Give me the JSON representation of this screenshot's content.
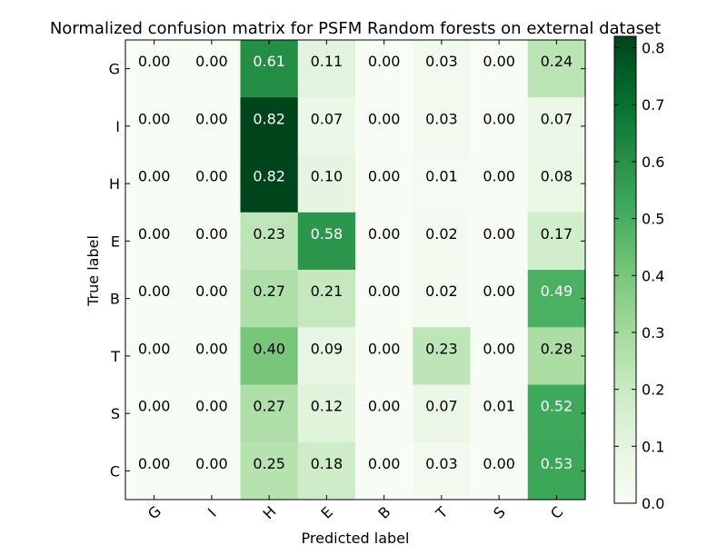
{
  "chart_data": {
    "type": "heatmap",
    "title": "Normalized confusion matrix for PSFM Random forests on external dataset",
    "xlabel": "Predicted label",
    "ylabel": "True label",
    "x_categories": [
      "G",
      "I",
      "H",
      "E",
      "B",
      "T",
      "S",
      "C"
    ],
    "y_categories": [
      "G",
      "I",
      "H",
      "E",
      "B",
      "T",
      "S",
      "C"
    ],
    "values": [
      [
        "0.00",
        "0.00",
        "0.61",
        "0.11",
        "0.00",
        "0.03",
        "0.00",
        "0.24"
      ],
      [
        "0.00",
        "0.00",
        "0.82",
        "0.07",
        "0.00",
        "0.03",
        "0.00",
        "0.07"
      ],
      [
        "0.00",
        "0.00",
        "0.82",
        "0.10",
        "0.00",
        "0.01",
        "0.00",
        "0.08"
      ],
      [
        "0.00",
        "0.00",
        "0.23",
        "0.58",
        "0.00",
        "0.02",
        "0.00",
        "0.17"
      ],
      [
        "0.00",
        "0.00",
        "0.27",
        "0.21",
        "0.00",
        "0.02",
        "0.00",
        "0.49"
      ],
      [
        "0.00",
        "0.00",
        "0.40",
        "0.09",
        "0.00",
        "0.23",
        "0.00",
        "0.28"
      ],
      [
        "0.00",
        "0.00",
        "0.27",
        "0.12",
        "0.00",
        "0.07",
        "0.01",
        "0.52"
      ],
      [
        "0.00",
        "0.00",
        "0.25",
        "0.18",
        "0.00",
        "0.03",
        "0.00",
        "0.53"
      ]
    ],
    "colorbar": {
      "range": [
        0.0,
        0.82
      ],
      "ticks": [
        "0.0",
        "0.1",
        "0.2",
        "0.3",
        "0.4",
        "0.5",
        "0.6",
        "0.7",
        "0.8"
      ],
      "colormap": "Greens"
    },
    "grid": false
  }
}
